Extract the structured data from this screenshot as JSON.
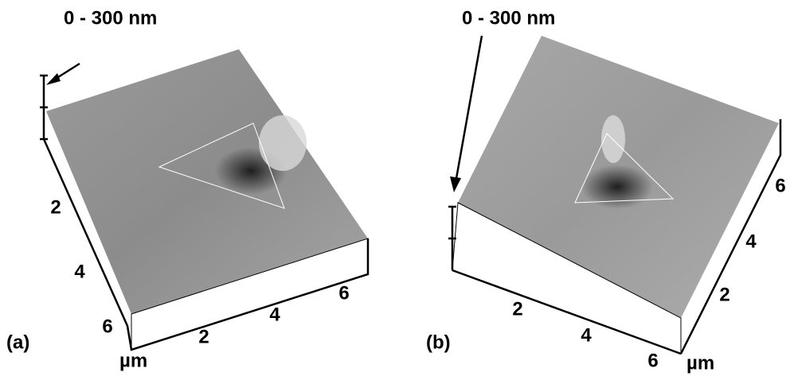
{
  "panels": [
    {
      "label": "(a)",
      "scale": "0 - 300 nm",
      "unit": "µm",
      "y_ticks": [
        2,
        4,
        6
      ],
      "x_ticks": [
        2,
        4,
        6
      ]
    },
    {
      "label": "(b)",
      "scale": "0 - 300 nm",
      "unit": "µm",
      "x_ticks": [
        2,
        4,
        6
      ],
      "y_ticks": [
        2,
        4,
        6
      ]
    }
  ]
}
